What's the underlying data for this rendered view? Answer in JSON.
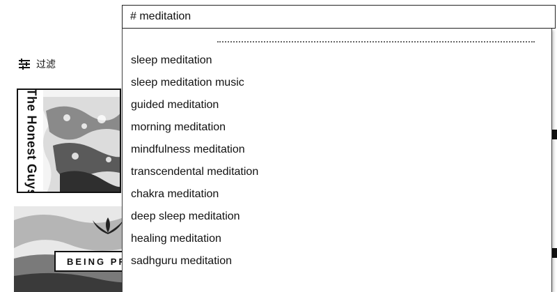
{
  "search": {
    "value": "# meditation"
  },
  "filter": {
    "label": "过滤",
    "icon": "filter-sliders-icon"
  },
  "suggestions": [
    "sleep meditation",
    "sleep meditation music",
    "guided meditation",
    "morning meditation",
    "mindfulness meditation",
    "transcendental meditation",
    "chakra meditation",
    "deep sleep meditation",
    "healing meditation",
    "sadhguru meditation"
  ],
  "results": [
    {
      "channel": "The Honest Guys"
    },
    {
      "banner": "BEING PRE"
    }
  ]
}
